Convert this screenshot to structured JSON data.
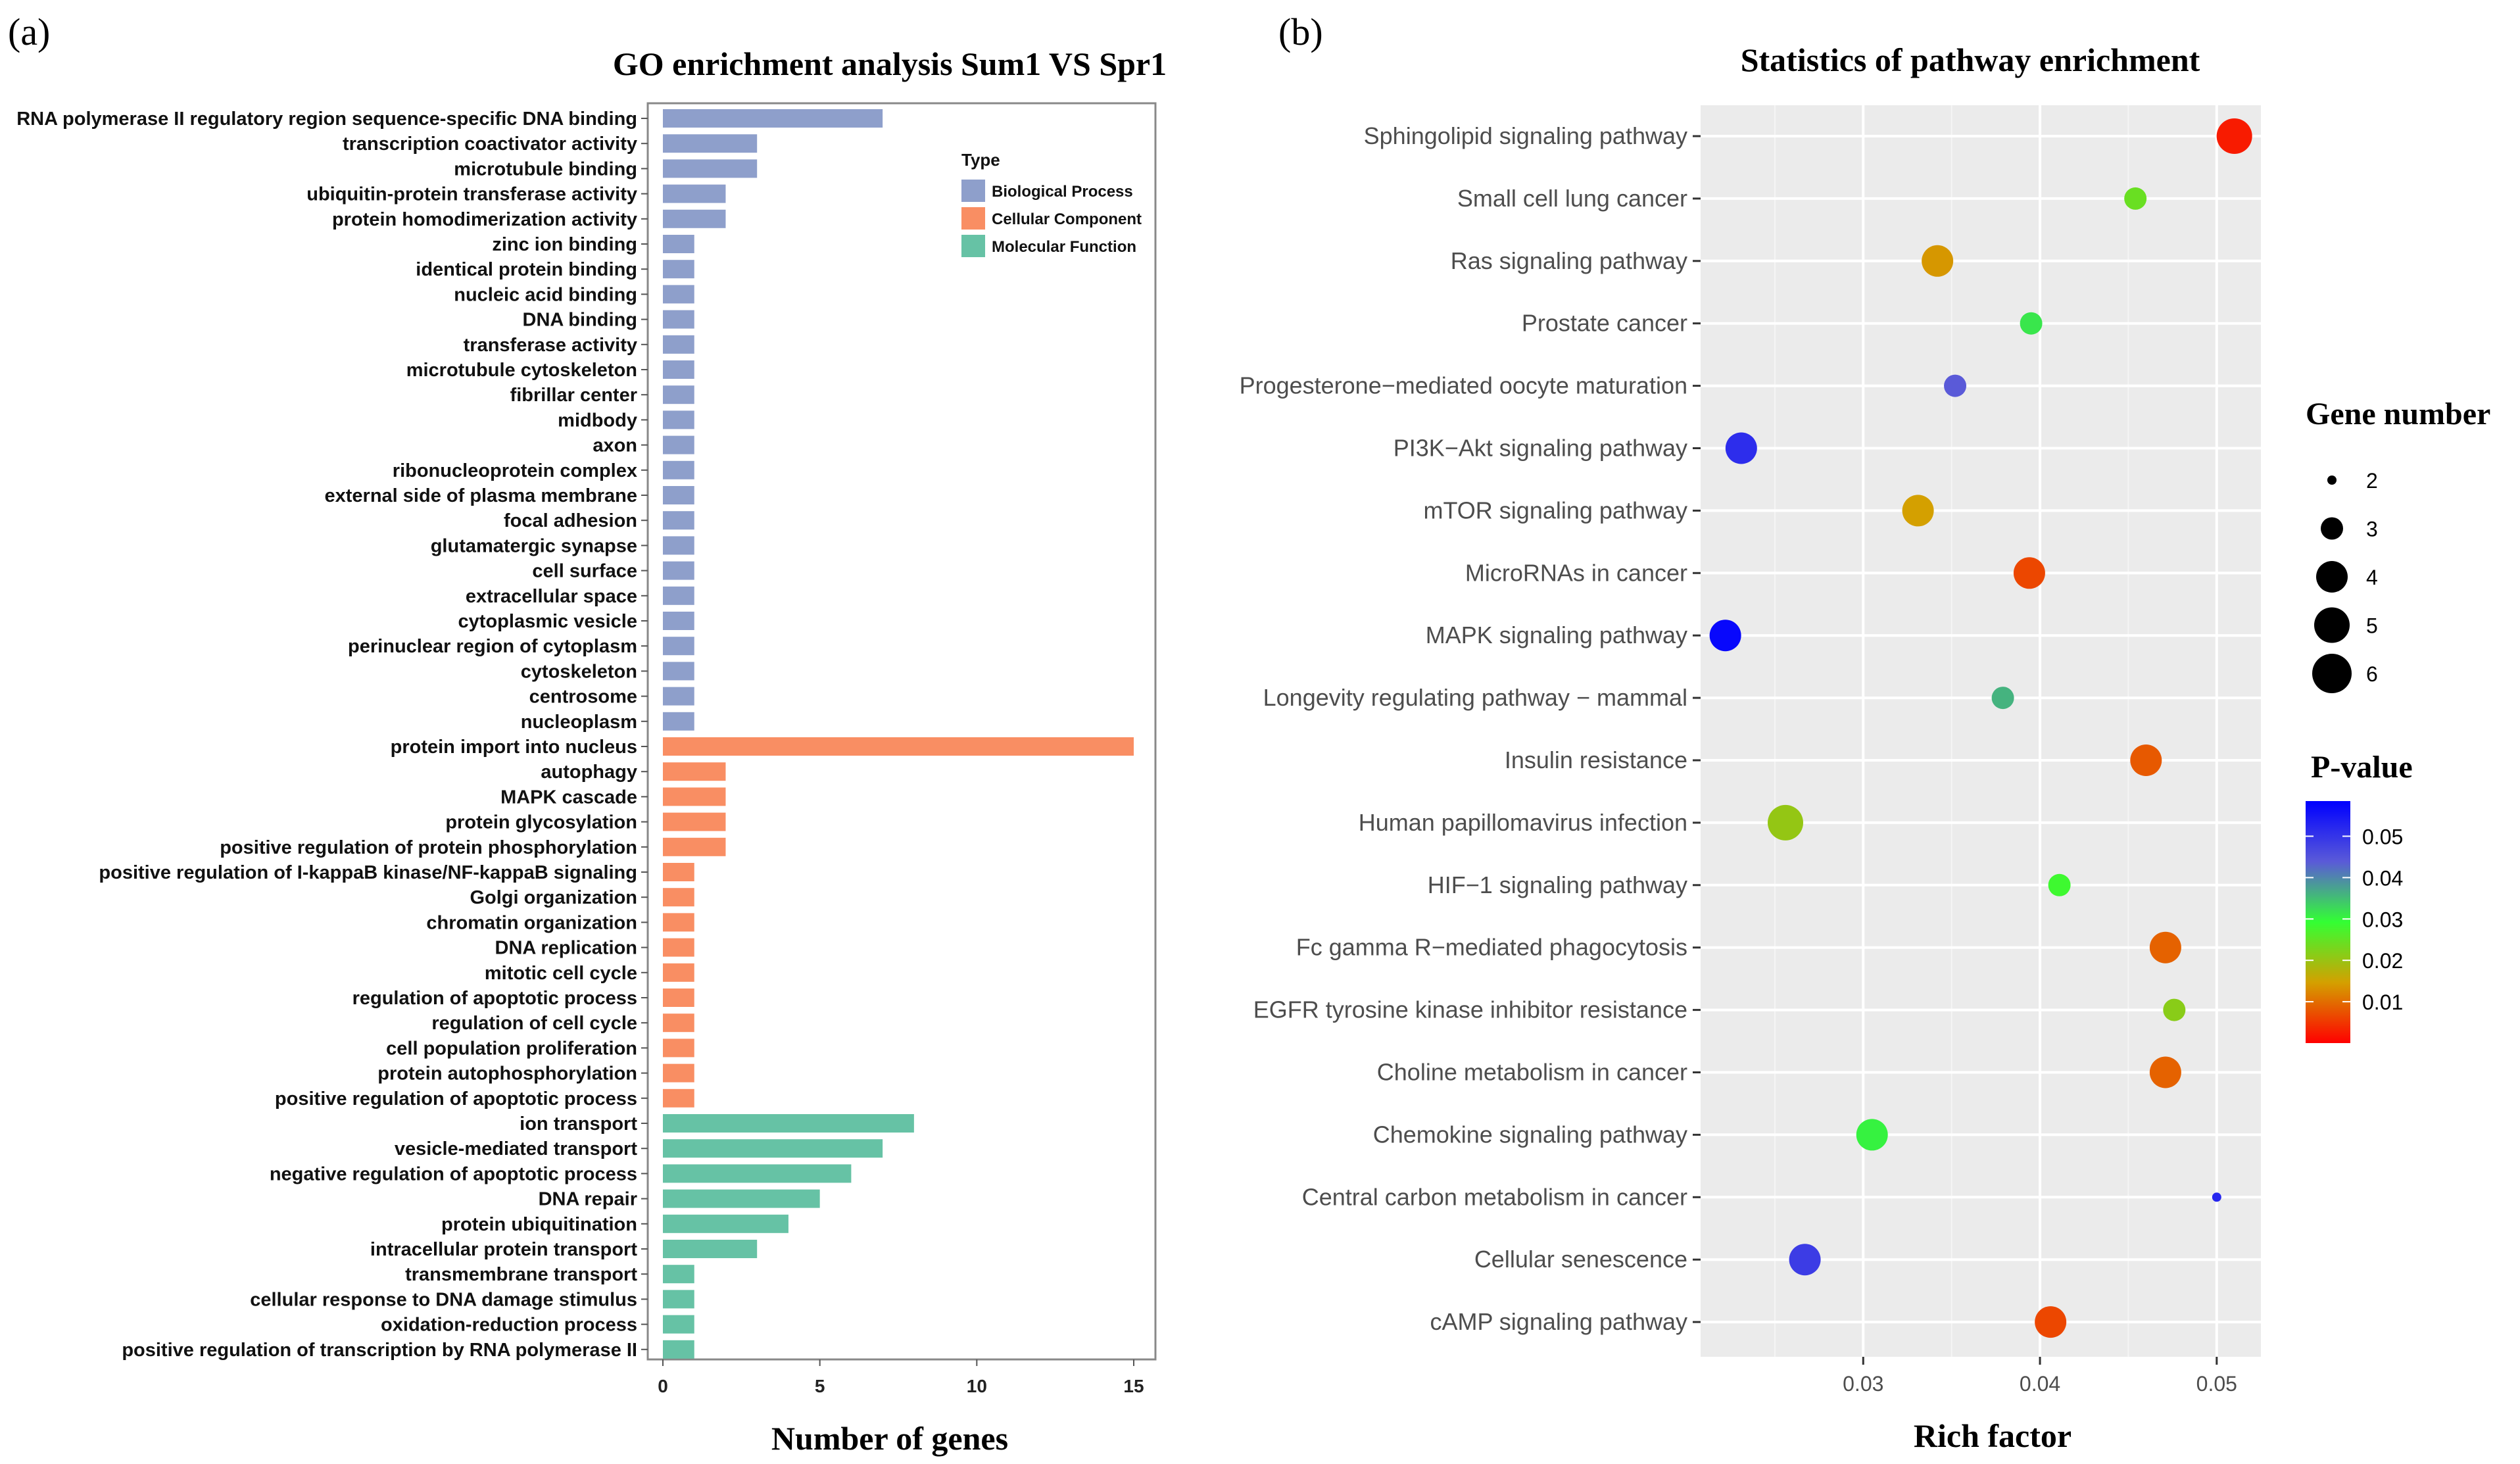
{
  "figure": {
    "label_a": "(a)",
    "label_b": "(b)"
  },
  "chart_data": [
    {
      "type": "bar",
      "orientation": "horizontal",
      "title": "GO enrichment analysis Sum1 VS Spr1",
      "xlabel": "Number of genes",
      "ylabel": "",
      "xlim": [
        0,
        15.6
      ],
      "xticks": [
        0,
        5,
        10,
        15
      ],
      "legend_title": "Type",
      "legend": [
        {
          "name": "Biological Process",
          "color": "#8e9fcb"
        },
        {
          "name": "Cellular Component",
          "color": "#f98e63"
        },
        {
          "name": "Molecular Function",
          "color": "#66c2a5"
        }
      ],
      "categories": [
        "RNA polymerase II regulatory region sequence-specific DNA binding",
        "transcription coactivator activity",
        "microtubule binding",
        "ubiquitin-protein transferase activity",
        "protein homodimerization activity",
        "zinc ion binding",
        "identical protein binding",
        "nucleic acid binding",
        "DNA binding",
        "transferase activity",
        "microtubule cytoskeleton",
        "fibrillar center",
        "midbody",
        "axon",
        "ribonucleoprotein complex",
        "external side of plasma membrane",
        "focal adhesion",
        "glutamatergic synapse",
        "cell surface",
        "extracellular space",
        "cytoplasmic vesicle",
        "perinuclear region of cytoplasm",
        "cytoskeleton",
        "centrosome",
        "nucleoplasm",
        "protein import into nucleus",
        "autophagy",
        "MAPK cascade",
        "protein glycosylation",
        "positive regulation of protein phosphorylation",
        "positive regulation of I-kappaB kinase/NF-kappaB signaling",
        "Golgi organization",
        "chromatin organization",
        "DNA replication",
        "mitotic cell cycle",
        "regulation of apoptotic process",
        "regulation of cell cycle",
        "cell population proliferation",
        "protein autophosphorylation",
        "positive regulation of apoptotic process",
        "ion transport",
        "vesicle-mediated transport",
        "negative regulation of apoptotic process",
        "DNA repair",
        "protein ubiquitination",
        "intracellular protein transport",
        "transmembrane transport",
        "cellular response to DNA damage stimulus",
        "oxidation-reduction process",
        "positive regulation of transcription by RNA polymerase II"
      ],
      "values": [
        7,
        3,
        3,
        2,
        2,
        1,
        1,
        1,
        1,
        1,
        1,
        1,
        1,
        1,
        1,
        1,
        1,
        1,
        1,
        1,
        1,
        1,
        1,
        1,
        1,
        15,
        2,
        2,
        2,
        2,
        1,
        1,
        1,
        1,
        1,
        1,
        1,
        1,
        1,
        1,
        8,
        7,
        6,
        5,
        4,
        3,
        1,
        1,
        1,
        1
      ],
      "groups": [
        0,
        0,
        0,
        0,
        0,
        0,
        0,
        0,
        0,
        0,
        0,
        0,
        0,
        0,
        0,
        0,
        0,
        0,
        0,
        0,
        0,
        0,
        0,
        0,
        0,
        1,
        1,
        1,
        1,
        1,
        1,
        1,
        1,
        1,
        1,
        1,
        1,
        1,
        1,
        1,
        2,
        2,
        2,
        2,
        2,
        2,
        2,
        2,
        2,
        2
      ]
    },
    {
      "type": "scatter",
      "title": "Statistics of pathway enrichment",
      "xlabel": "Rich factor",
      "ylabel": "",
      "xlim": [
        0.0208,
        0.0525
      ],
      "xticks": [
        0.03,
        0.04,
        0.05
      ],
      "xtick_labels": [
        "0.03",
        "0.04",
        "0.05"
      ],
      "categories": [
        "Sphingolipid signaling pathway",
        "Small cell lung cancer",
        "Ras signaling pathway",
        "Prostate cancer",
        "Progesterone−mediated oocyte maturation",
        "PI3K−Akt signaling pathway",
        "mTOR signaling pathway",
        "MicroRNAs in cancer",
        "MAPK signaling pathway",
        "Longevity regulating pathway − mammal",
        "Insulin resistance",
        "Human papillomavirus infection",
        "HIF−1 signaling pathway",
        "Fc gamma R−mediated phagocytosis",
        "EGFR tyrosine kinase inhibitor resistance",
        "Choline metabolism in cancer",
        "Chemokine signaling pathway",
        "Central carbon metabolism in cancer",
        "Cellular senescence",
        "cAMP signaling pathway"
      ],
      "rich_factor": [
        0.051,
        0.0454,
        0.0342,
        0.0395,
        0.0352,
        0.0231,
        0.0331,
        0.0394,
        0.0222,
        0.0379,
        0.046,
        0.0256,
        0.0411,
        0.0471,
        0.0476,
        0.0471,
        0.0305,
        0.05,
        0.0267,
        0.0406
      ],
      "gene_number": [
        5,
        3,
        4,
        3,
        3,
        4,
        4,
        4,
        4,
        3,
        4,
        5,
        3,
        4,
        3,
        4,
        4,
        2,
        4,
        4
      ],
      "p_value": [
        0.003,
        0.028,
        0.017,
        0.035,
        0.046,
        0.052,
        0.018,
        0.008,
        0.057,
        0.039,
        0.01,
        0.024,
        0.032,
        0.011,
        0.025,
        0.011,
        0.034,
        0.053,
        0.05,
        0.008
      ],
      "size_legend_title": "Gene number",
      "size_legend": [
        2,
        3,
        4,
        5,
        6
      ],
      "color_legend_title": "P-value",
      "color_legend_ticks": [
        "0.05",
        "0.04",
        "0.03",
        "0.02",
        "0.01"
      ],
      "color_scale": [
        "#ff0000",
        "#d4a000",
        "#33ff33",
        "#5a5ad8",
        "#0000ff"
      ]
    }
  ]
}
